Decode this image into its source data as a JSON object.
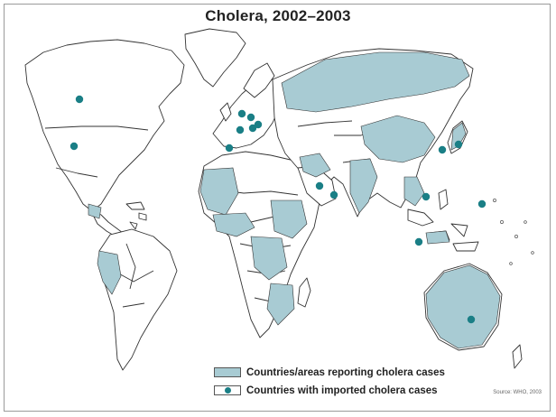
{
  "title": "Cholera, 2002–2003",
  "legend": {
    "reporting": "Countries/areas reporting cholera cases",
    "imported": "Countries with imported cholera cases"
  },
  "source": "Source: WHO, 2003",
  "colors": {
    "reporting_fill": "#a8cbd3",
    "imported_dot": "#1a7f86",
    "land": "#ffffff",
    "outline": "#333333"
  },
  "icons": {
    "reporting": "shaded-country-swatch",
    "imported": "teal-dot-marker"
  }
}
